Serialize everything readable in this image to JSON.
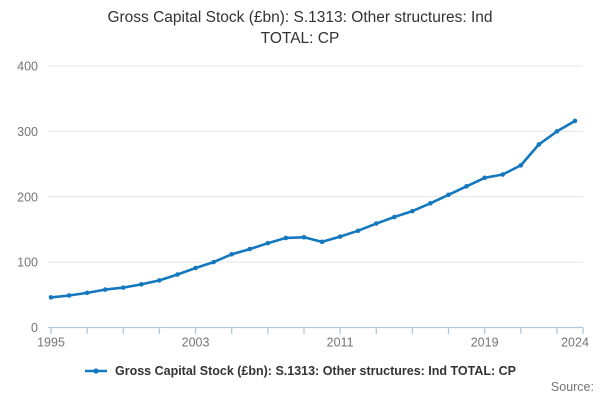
{
  "title": {
    "line1": "Gross Capital Stock (£bn): S.1313: Other structures: Ind",
    "line2": "TOTAL: CP"
  },
  "legend": {
    "label": "Gross Capital Stock (£bn): S.1313: Other structures: Ind TOTAL: CP"
  },
  "source": {
    "label": "Source:"
  },
  "colors": {
    "line": "#1478be",
    "grid": "#e4e4e4",
    "axis": "#b4c7d9",
    "axis_text": "#757575",
    "title_text": "#333333"
  },
  "chart_data": {
    "type": "line",
    "title": "Gross Capital Stock (£bn): S.1313: Other structures: Ind TOTAL: CP",
    "xlabel": "",
    "ylabel": "",
    "x": [
      1995,
      1996,
      1997,
      1998,
      1999,
      2000,
      2001,
      2002,
      2003,
      2004,
      2005,
      2006,
      2007,
      2008,
      2009,
      2010,
      2011,
      2012,
      2013,
      2014,
      2015,
      2016,
      2017,
      2018,
      2019,
      2020,
      2021,
      2022,
      2023,
      2024
    ],
    "series": [
      {
        "name": "Gross Capital Stock (£bn): S.1313: Other structures: Ind TOTAL: CP",
        "values": [
          46,
          49,
          53,
          58,
          61,
          66,
          72,
          81,
          91,
          100,
          112,
          120,
          129,
          137,
          138,
          131,
          139,
          148,
          159,
          169,
          178,
          190,
          203,
          216,
          229,
          234,
          248,
          280,
          300,
          316
        ]
      }
    ],
    "ylim": [
      0,
      400
    ],
    "yticks": [
      0,
      100,
      200,
      300,
      400
    ],
    "xtick_labels": [
      {
        "x": 1995,
        "label": "1995"
      },
      {
        "x": 2003,
        "label": "2003"
      },
      {
        "x": 2011,
        "label": "2011"
      },
      {
        "x": 2019,
        "label": "2019"
      },
      {
        "x": 2024,
        "label": "2024"
      }
    ],
    "minor_xticks_every": 2,
    "grid": "horizontal",
    "legend_position": "bottom",
    "markers": true
  }
}
